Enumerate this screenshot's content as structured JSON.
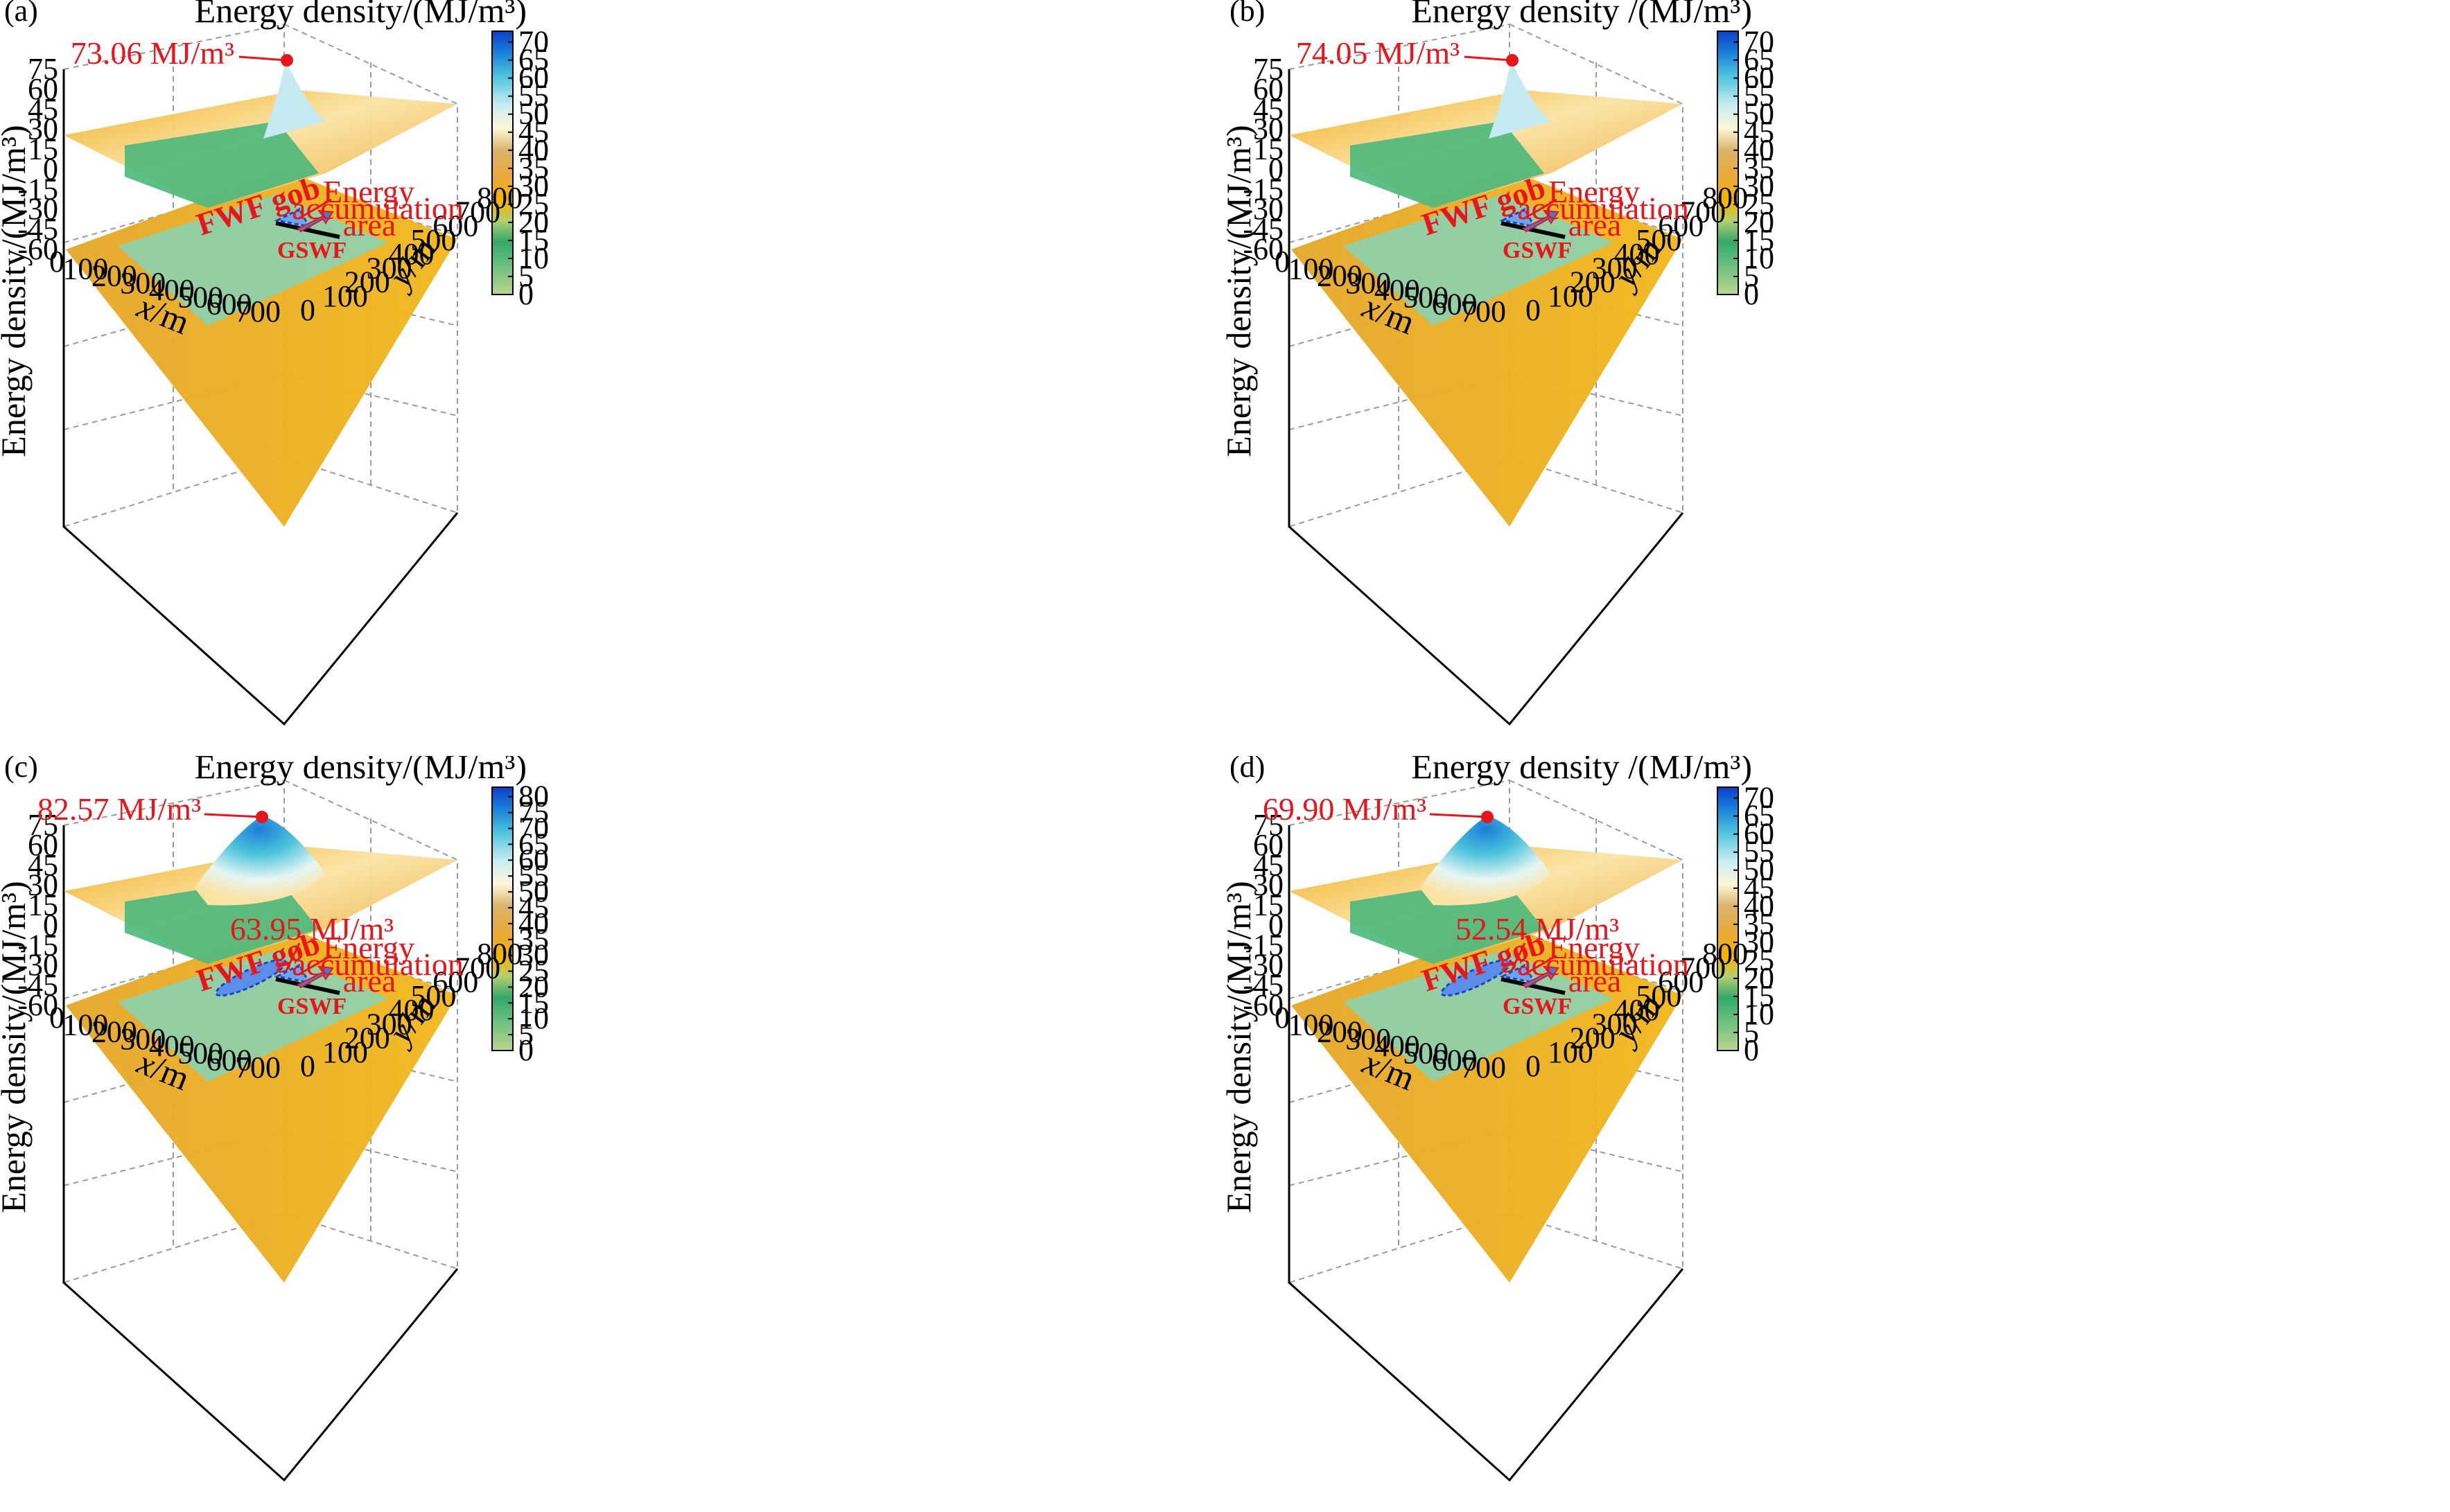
{
  "chart_data": [
    {
      "type": "surface3d",
      "panel_label": "(a)",
      "colorbar_title": "Energy density/(MJ/m³)",
      "colorbar_ticks": [
        0,
        5,
        10,
        15,
        20,
        25,
        30,
        35,
        40,
        45,
        50,
        55,
        60,
        65,
        70
      ],
      "colorbar_range": [
        0,
        73
      ],
      "zlabel": "Energy density/(MJ/m³)",
      "xlabel_var": "x",
      "xlabel_unit": "/m",
      "ylabel_var": "y",
      "ylabel_unit": "/m",
      "zticks": [
        "75",
        "60",
        "45",
        "30",
        "15",
        "0",
        "-15",
        "-30",
        "-45",
        "-60"
      ],
      "xticks": [
        "0",
        "100",
        "200",
        "300",
        "400",
        "500",
        "600",
        "700"
      ],
      "yticks": [
        "0",
        "100",
        "200",
        "300",
        "400",
        "500",
        "600",
        "700",
        "800"
      ],
      "peak_label": "73.06 MJ/m³",
      "peak_value": 73.06,
      "contour_label": "",
      "gob_label": "FWF gob",
      "face_label": "GSWF",
      "area_label": [
        "Energy",
        "accumulation",
        "area"
      ]
    },
    {
      "type": "surface3d",
      "panel_label": "(b)",
      "colorbar_title": "Energy density /(MJ/m³)",
      "colorbar_ticks": [
        0,
        5,
        10,
        15,
        20,
        25,
        30,
        35,
        40,
        45,
        50,
        55,
        60,
        65,
        70
      ],
      "colorbar_range": [
        0,
        73
      ],
      "zlabel": "Energy density/(MJ/m³)",
      "xlabel_var": "x",
      "xlabel_unit": "/m",
      "ylabel_var": "y",
      "ylabel_unit": "/m",
      "zticks": [
        "75",
        "60",
        "45",
        "30",
        "15",
        "0",
        "-15",
        "-30",
        "-45",
        "-60"
      ],
      "xticks": [
        "0",
        "100",
        "200",
        "300",
        "400",
        "500",
        "600",
        "700"
      ],
      "yticks": [
        "0",
        "100",
        "200",
        "300",
        "400",
        "500",
        "600",
        "700",
        "800"
      ],
      "peak_label": "74.05 MJ/m³",
      "peak_value": 74.05,
      "contour_label": "",
      "gob_label": "FWF gob",
      "face_label": "GSWF",
      "area_label": [
        "Energy",
        "accumulation",
        "area"
      ]
    },
    {
      "type": "surface3d",
      "panel_label": "(c)",
      "colorbar_title": "Energy density/(MJ/m³)",
      "colorbar_ticks": [
        0,
        5,
        10,
        15,
        20,
        25,
        30,
        35,
        40,
        45,
        50,
        55,
        60,
        65,
        70,
        75,
        80
      ],
      "colorbar_range": [
        0,
        83
      ],
      "zlabel": "Energy density/(MJ/m³)",
      "xlabel_var": "x",
      "xlabel_unit": "/m",
      "ylabel_var": "y",
      "ylabel_unit": "/m",
      "zticks": [
        "75",
        "60",
        "45",
        "30",
        "15",
        "0",
        "-15",
        "-30",
        "-45",
        "-60"
      ],
      "xticks": [
        "0",
        "100",
        "200",
        "300",
        "400",
        "500",
        "600",
        "700"
      ],
      "yticks": [
        "0",
        "100",
        "200",
        "300",
        "400",
        "500",
        "600",
        "700",
        "800"
      ],
      "peak_label": "82.57 MJ/m³",
      "peak_value": 82.57,
      "contour_label": "63.95 MJ/m³",
      "gob_label": "FWF gob",
      "face_label": "GSWF",
      "area_label": [
        "Energy",
        "accumulation",
        "area"
      ]
    },
    {
      "type": "surface3d",
      "panel_label": "(d)",
      "colorbar_title": "Energy density /(MJ/m³)",
      "colorbar_ticks": [
        0,
        5,
        10,
        15,
        20,
        25,
        30,
        35,
        40,
        45,
        50,
        55,
        60,
        65,
        70
      ],
      "colorbar_range": [
        0,
        73
      ],
      "zlabel": "Energy density/(MJ/m³)",
      "xlabel_var": "x",
      "xlabel_unit": "/m",
      "ylabel_var": "y",
      "ylabel_unit": "/m",
      "zticks": [
        "75",
        "60",
        "45",
        "30",
        "15",
        "0",
        "-15",
        "-30",
        "-45",
        "-60"
      ],
      "xticks": [
        "0",
        "100",
        "200",
        "300",
        "400",
        "500",
        "600",
        "700"
      ],
      "yticks": [
        "0",
        "100",
        "200",
        "300",
        "400",
        "500",
        "600",
        "700",
        "800"
      ],
      "peak_label": "69.90 MJ/m³",
      "peak_value": 69.9,
      "contour_label": "52.54 MJ/m³",
      "gob_label": "FWF gob",
      "face_label": "GSWF",
      "area_label": [
        "Energy",
        "accumulation",
        "area"
      ]
    }
  ],
  "colors": {
    "annotation": "#e8151b",
    "grid": "#9a9a9a",
    "colormap": [
      "#bcd58f",
      "#3aab6d",
      "#86cfa4",
      "#f5b400",
      "#e8a93a",
      "#fff6d8",
      "#c8ecf3",
      "#4cc3db",
      "#1a7fd8",
      "#0a3fc9"
    ]
  }
}
